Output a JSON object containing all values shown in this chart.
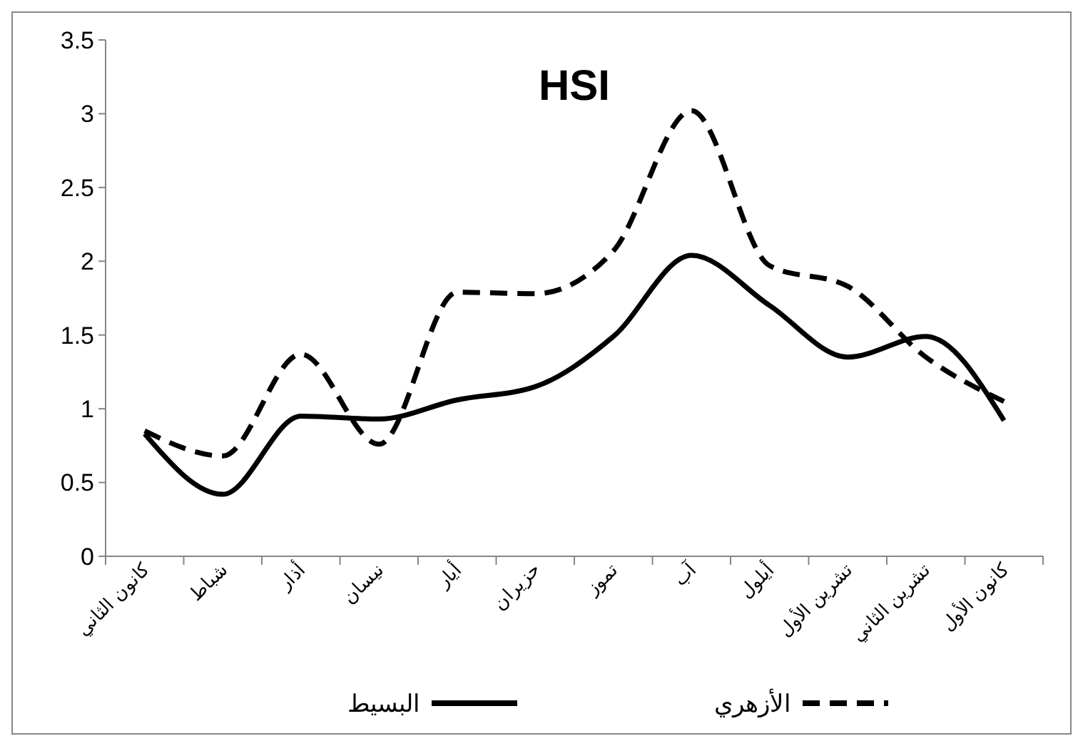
{
  "chart_data": {
    "type": "line",
    "title": "HSI",
    "categories": [
      "كانون الثاني",
      "شباط",
      "أذار",
      "نيسان",
      "أيار",
      "حزيران",
      "تموز",
      "آب",
      "أيلول",
      "تشرين الأول",
      "تشرين الثاني",
      "كانون الأول"
    ],
    "series": [
      {
        "name": "البسيط",
        "color": "#000000",
        "line_style": "solid",
        "values": [
          0.83,
          0.42,
          0.95,
          0.93,
          1.06,
          1.15,
          1.49,
          2.04,
          1.7,
          1.35,
          1.49,
          0.92
        ]
      },
      {
        "name": "الأزهري",
        "color": "#000000",
        "line_style": "dashed",
        "values": [
          0.85,
          0.68,
          1.37,
          0.76,
          1.79,
          1.78,
          2.07,
          3.02,
          1.97,
          1.83,
          1.35,
          1.05
        ]
      }
    ],
    "ylim": [
      0,
      3.5
    ],
    "yticks": [
      0,
      0.5,
      1,
      1.5,
      2,
      2.5,
      3,
      3.5
    ],
    "grid": false,
    "legend": "bottom",
    "marker": "none"
  }
}
